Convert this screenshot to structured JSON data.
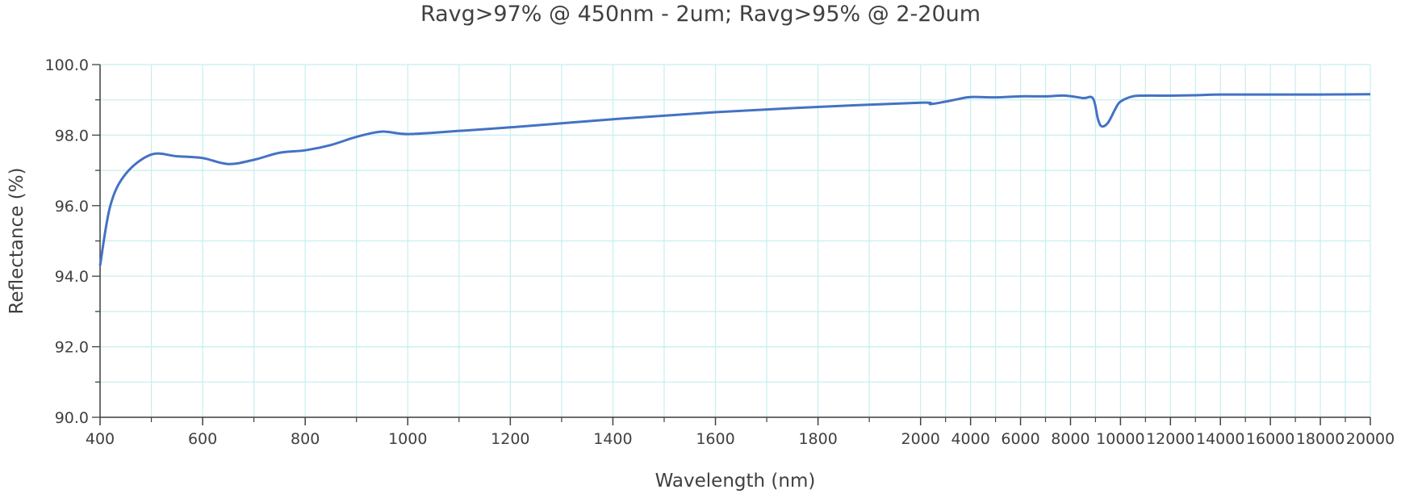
{
  "chart_data": {
    "type": "line",
    "title": "Ravg>97% @ 450nm - 2um;  Ravg>95% @ 2-20um",
    "xlabel": "Wavelength (nm)",
    "ylabel": "Reflectance (%)",
    "x_scale": "piecewise: 400–2000 nm linear, 2000–20000 nm linear (each section with its own spacing)",
    "x_ticks": [
      400,
      600,
      800,
      1000,
      1200,
      1400,
      1600,
      1800,
      2000,
      4000,
      6000,
      8000,
      10000,
      12000,
      14000,
      16000,
      18000,
      20000
    ],
    "x_tick_labels": [
      "400",
      "600",
      "800",
      "1000",
      "1200",
      "1400",
      "1600",
      "1800",
      "2000",
      "4000",
      "6000",
      "8000",
      "10000",
      "12000",
      "14000",
      "16000",
      "18000",
      "20000"
    ],
    "ylim": [
      90,
      100
    ],
    "y_ticks": [
      90,
      92,
      94,
      96,
      98,
      100
    ],
    "y_tick_labels": [
      "90.0",
      "92.0",
      "94.0",
      "96.0",
      "98.0",
      "100.0"
    ],
    "grid": true,
    "colors": {
      "series": "#4472c4",
      "grid": "#c6eeee",
      "axis": "#404040"
    },
    "series": [
      {
        "x": [
          400,
          420,
          450,
          500,
          550,
          600,
          650,
          700,
          750,
          800,
          850,
          900,
          950,
          1000,
          1100,
          1200,
          1400,
          1600,
          1800,
          2000,
          2400,
          3000,
          3500,
          4000,
          5000,
          6000,
          7000,
          7800,
          8500,
          8900,
          9100,
          9250,
          9500,
          9800,
          10000,
          10500,
          11000,
          12000,
          13000,
          14000,
          16000,
          18000,
          20000
        ],
        "y": [
          94.3,
          96.0,
          96.9,
          97.45,
          97.4,
          97.35,
          97.18,
          97.3,
          97.5,
          97.57,
          97.72,
          97.95,
          98.1,
          98.03,
          98.12,
          98.22,
          98.45,
          98.65,
          98.8,
          98.92,
          98.88,
          98.95,
          99.02,
          99.08,
          99.07,
          99.1,
          99.1,
          99.12,
          99.05,
          99.04,
          98.45,
          98.25,
          98.35,
          98.75,
          98.95,
          99.1,
          99.12,
          99.12,
          99.13,
          99.15,
          99.15,
          99.15,
          99.16
        ]
      }
    ]
  }
}
